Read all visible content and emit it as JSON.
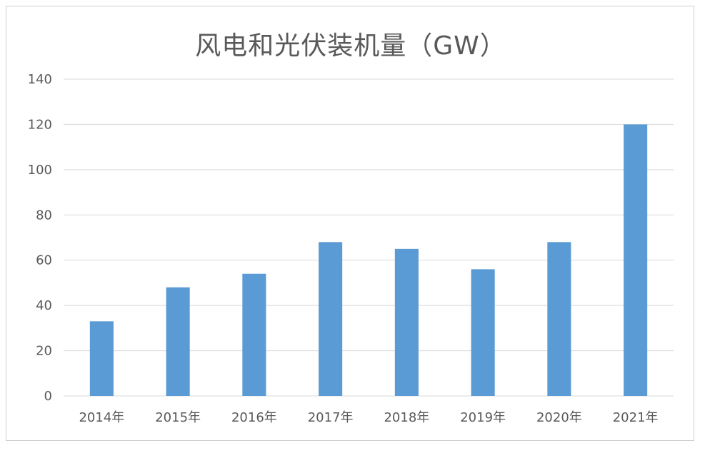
{
  "chart_data": {
    "type": "bar",
    "title": "风电和光伏装机量（GW）",
    "xlabel": "",
    "ylabel": "",
    "categories": [
      "2014年",
      "2015年",
      "2016年",
      "2017年",
      "2018年",
      "2019年",
      "2020年",
      "2021年"
    ],
    "values": [
      33,
      48,
      54,
      68,
      65,
      56,
      68,
      120
    ],
    "ylim": [
      0,
      140
    ],
    "yticks": [
      0,
      20,
      40,
      60,
      80,
      100,
      120,
      140
    ],
    "grid": true,
    "legend": "none",
    "bar_color": "#5b9bd5",
    "grid_color": "#d9d9d9"
  }
}
